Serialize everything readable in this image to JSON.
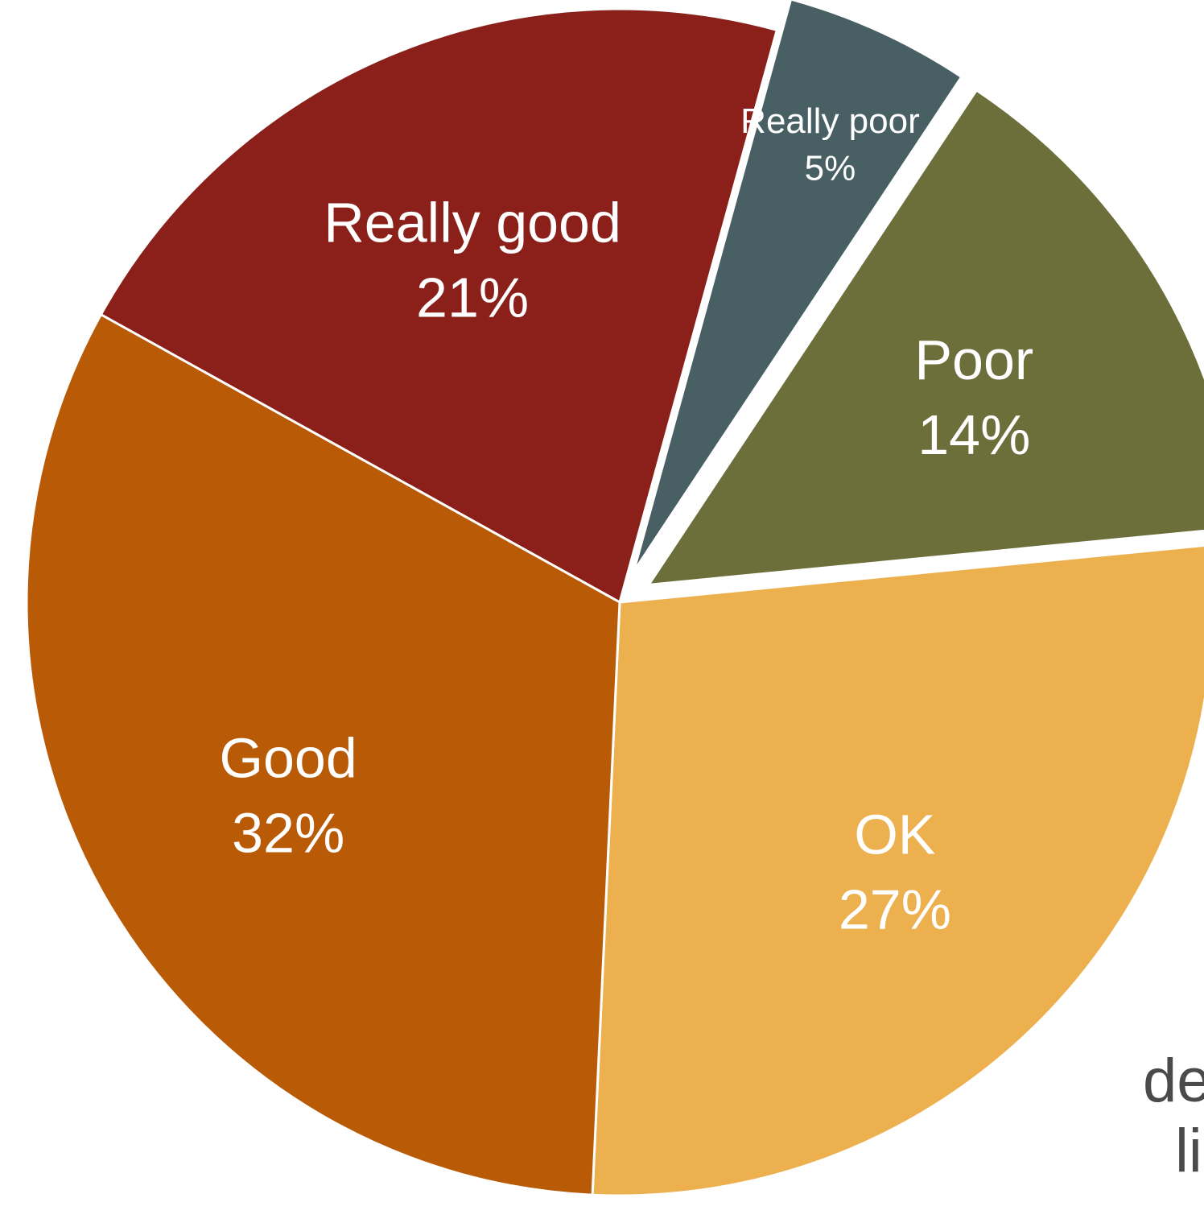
{
  "chart_data": {
    "type": "pie",
    "slices": [
      {
        "label": "Really good",
        "value": 21,
        "value_label": "21%",
        "color": "#8a2019",
        "exploded": false
      },
      {
        "label": "Really poor",
        "value": 5,
        "value_label": "5%",
        "color": "#485f63",
        "exploded": true
      },
      {
        "label": "Poor",
        "value": 14,
        "value_label": "14%",
        "color": "#6d6f3b",
        "exploded": true
      },
      {
        "label": "OK",
        "value": 27,
        "value_label": "27%",
        "color": "#edb04f",
        "exploded": false
      },
      {
        "label": "Good",
        "value": 32,
        "value_label": "32%",
        "color": "#b95a07",
        "exploded": false
      }
    ],
    "cut_off_text": [
      "de",
      "li"
    ],
    "title": "",
    "legend": "none"
  }
}
